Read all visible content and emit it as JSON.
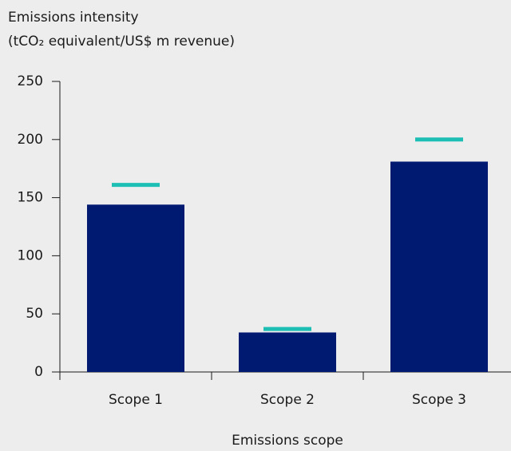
{
  "chart_data": {
    "type": "bar",
    "title": "Emissions intensity",
    "subtitle": "(tCO₂ equivalent/US$ m revenue)",
    "x_label": "Emissions scope",
    "categories": [
      "Scope 1",
      "Scope 2",
      "Scope 3"
    ],
    "values": [
      144,
      34,
      181
    ],
    "color": "#001a72",
    "markers": [
      161,
      37,
      200
    ],
    "marker_color": "#1dbfb5",
    "ylim": [
      0,
      250
    ],
    "yticks": [
      0,
      50,
      100,
      150,
      200,
      250
    ],
    "grid": false
  }
}
